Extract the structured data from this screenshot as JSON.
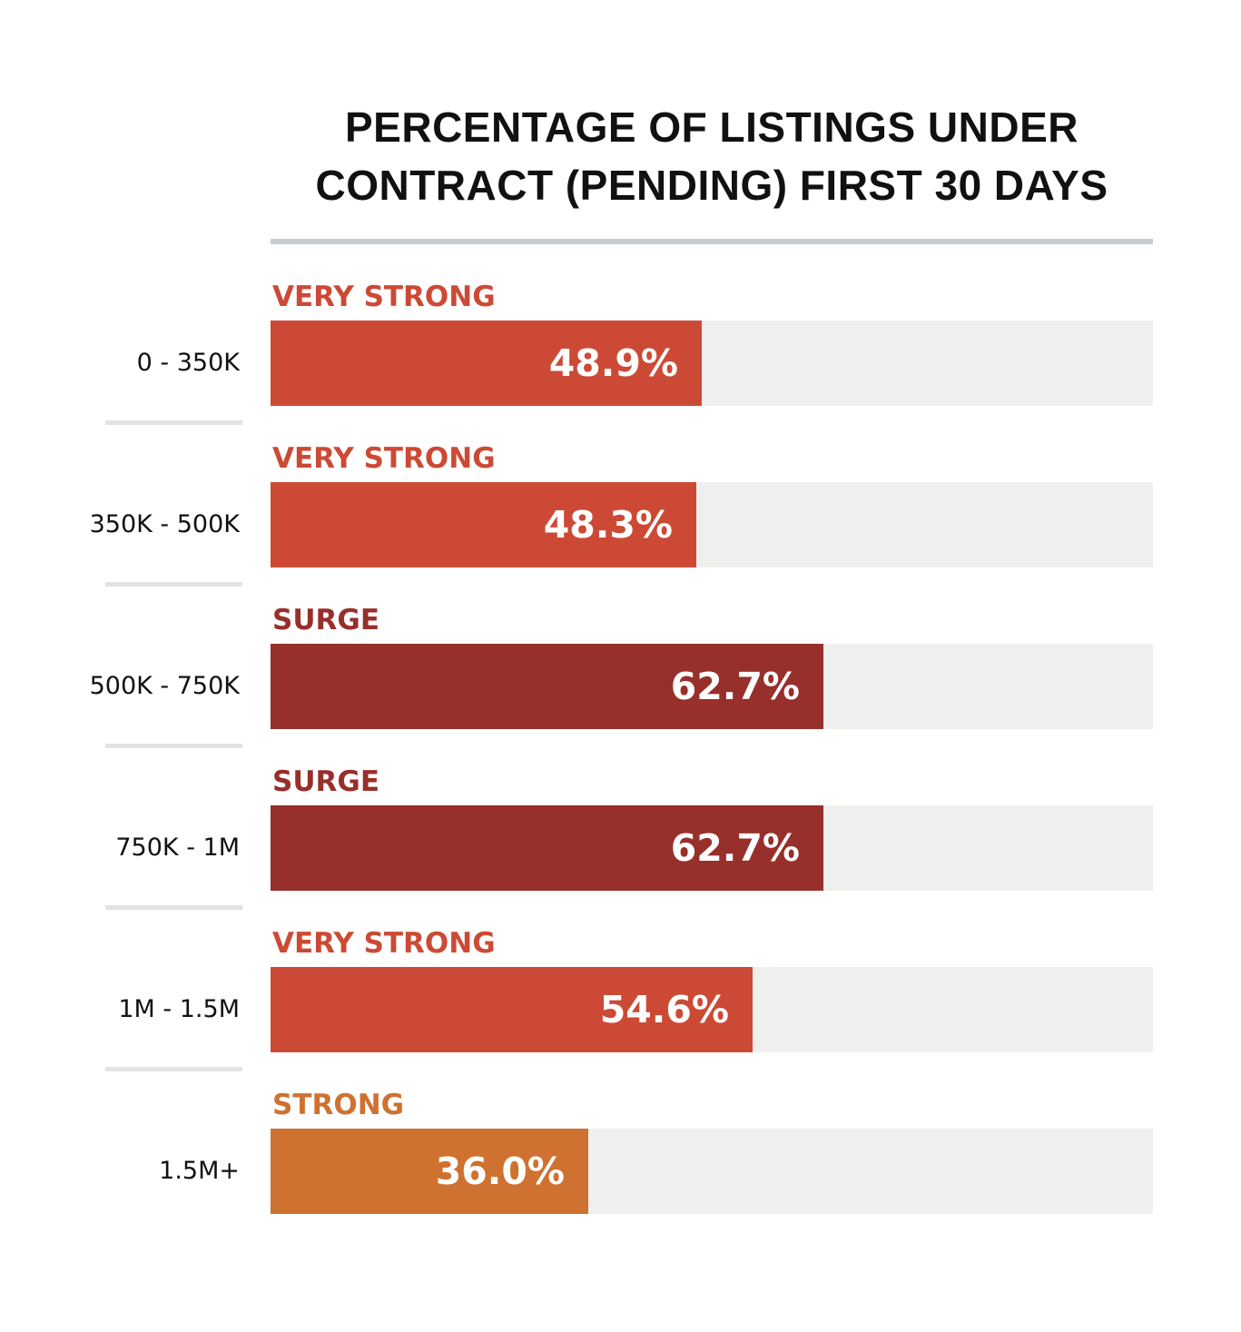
{
  "chart_data": {
    "type": "bar",
    "orientation": "horizontal",
    "title": "PERCENTAGE OF LISTINGS UNDER CONTRACT (PENDING) FIRST 30 DAYS",
    "title_lines": [
      "PERCENTAGE OF LISTINGS UNDER",
      "CONTRACT (PENDING) FIRST 30 DAYS"
    ],
    "categories": [
      "0 - 350K",
      "350K - 500K",
      "500K - 750K",
      "750K - 1M",
      "1M - 1.5M",
      "1.5M+"
    ],
    "values": [
      48.9,
      48.3,
      62.7,
      62.7,
      54.6,
      36.0
    ],
    "value_labels": [
      "48.9%",
      "48.3%",
      "62.7%",
      "62.7%",
      "54.6%",
      "36.0%"
    ],
    "status_labels": [
      "VERY STRONG",
      "VERY STRONG",
      "SURGE",
      "SURGE",
      "VERY STRONG",
      "STRONG"
    ],
    "xlim": [
      0,
      100
    ],
    "status_colors": {
      "VERY STRONG": "#cc4a35",
      "SURGE": "#972f2b",
      "STRONG": "#cf7130"
    },
    "track_color": "#efefed",
    "grid": false,
    "legend": "none"
  }
}
